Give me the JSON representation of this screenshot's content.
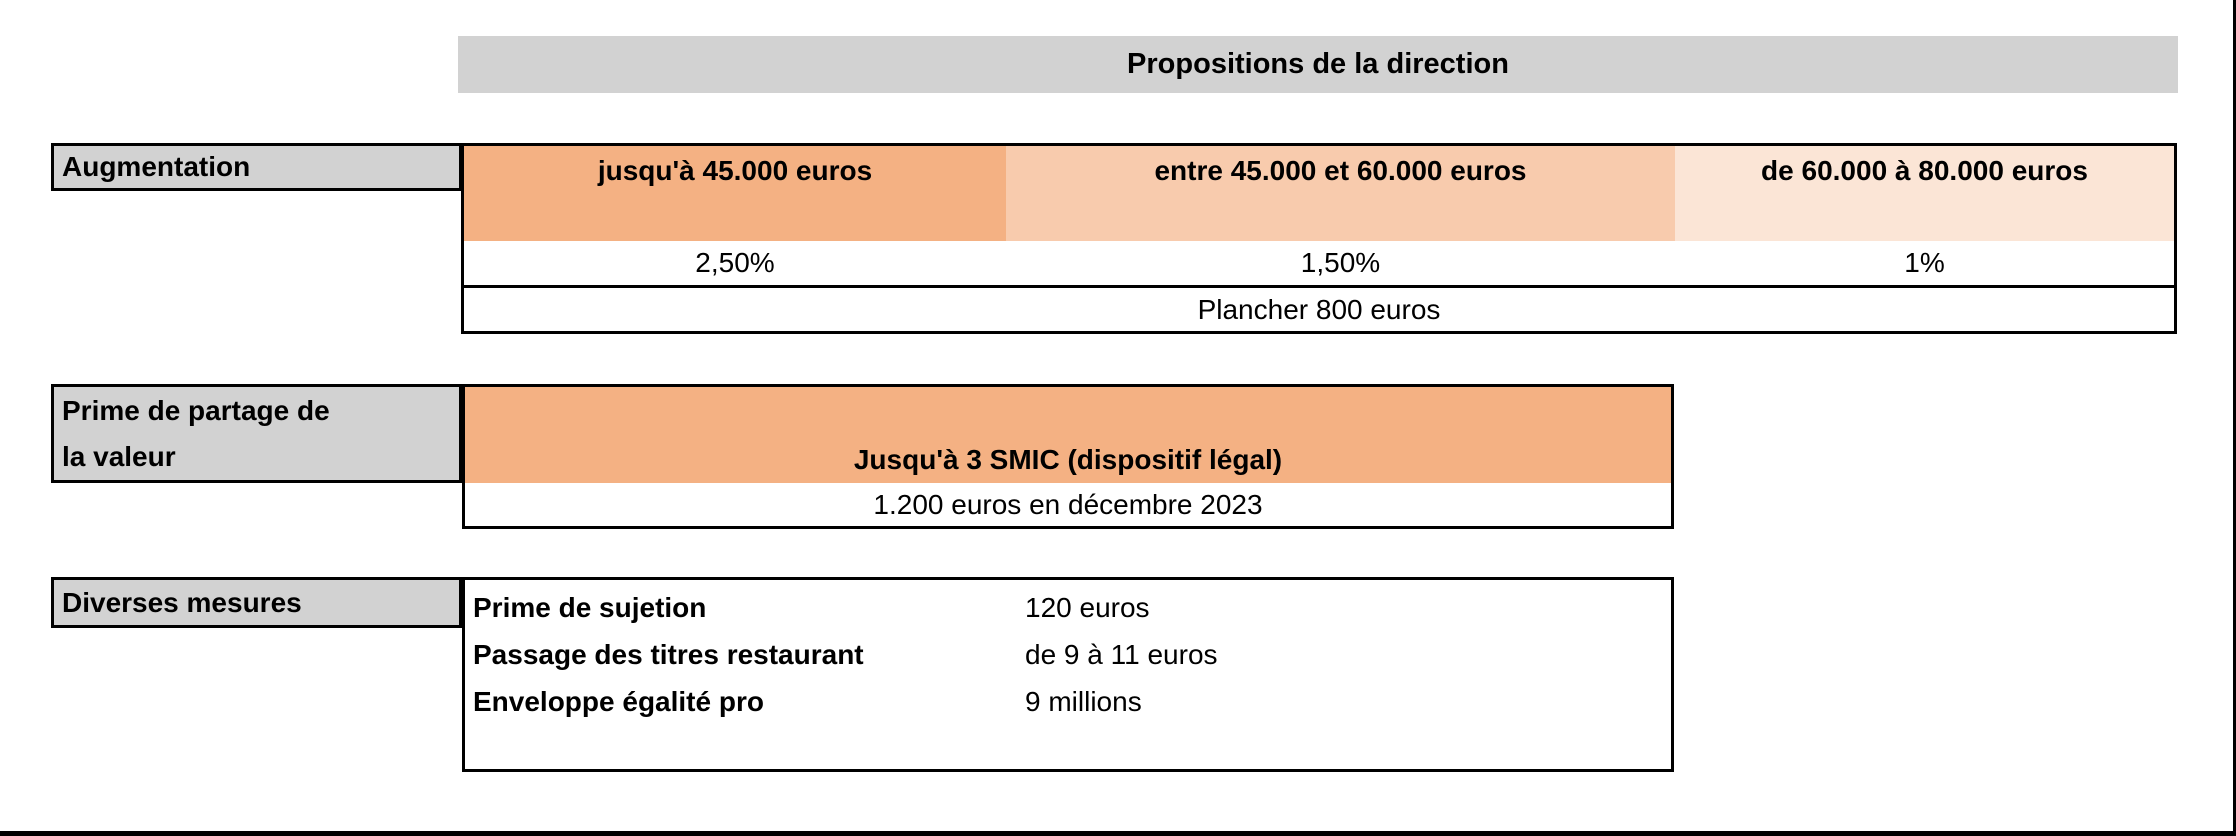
{
  "title": "Propositions de la direction",
  "colors": {
    "label_gray": "#D2D2D2",
    "orange_dark": "#F4B183",
    "orange_medium": "#F8CBAD",
    "orange_light": "#FBE5D6",
    "border_black": "#000000"
  },
  "augmentation": {
    "label": "Augmentation",
    "columns": [
      {
        "header": "jusqu'à 45.000 euros",
        "value": "2,50%"
      },
      {
        "header": "entre 45.000 et 60.000 euros",
        "value": "1,50%"
      },
      {
        "header": "de 60.000 à 80.000 euros",
        "value": "1%"
      }
    ],
    "floor_note": "Plancher 800 euros"
  },
  "prime_partage": {
    "label_lines": [
      "Prime de partage de",
      "la valeur"
    ],
    "header": "Jusqu'à 3 SMIC (dispositif légal)",
    "value": "1.200 euros en décembre 2023"
  },
  "diverses_mesures": {
    "label": "Diverses mesures",
    "items": [
      {
        "label": "Prime de sujetion",
        "value": "120 euros"
      },
      {
        "label": "Passage des titres restaurant",
        "value": "de 9 à 11 euros"
      },
      {
        "label": "Enveloppe égalité pro",
        "value": "9 millions"
      }
    ]
  }
}
